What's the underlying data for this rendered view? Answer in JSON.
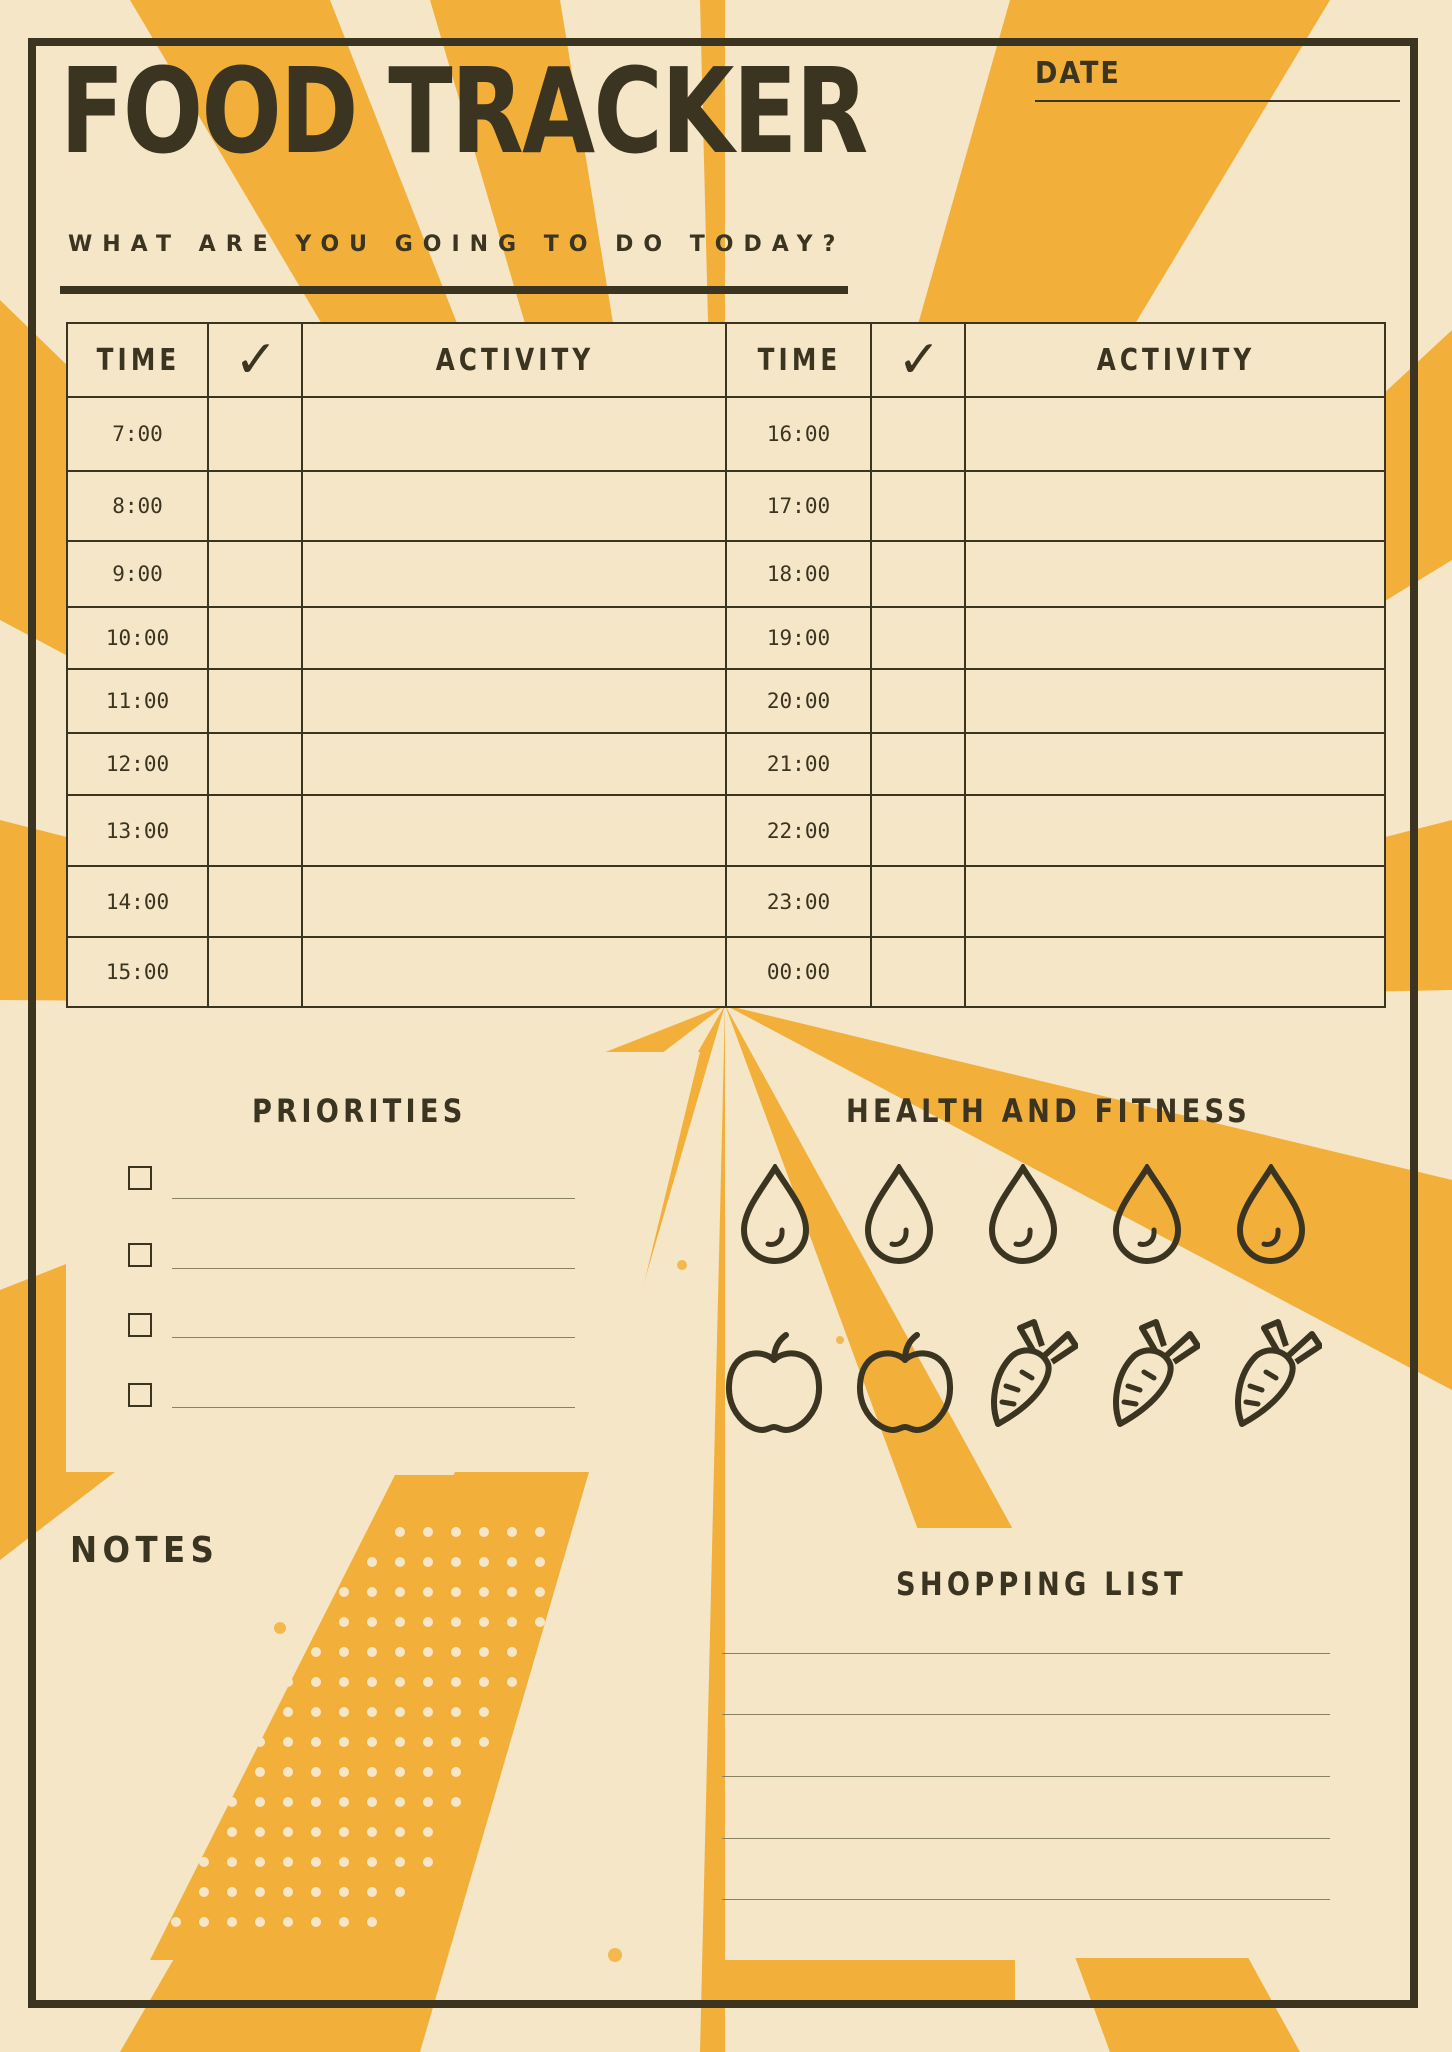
{
  "page": {
    "title": "FOOD TRACKER",
    "subtitle": "WHAT ARE YOU GOING TO DO TODAY?",
    "date_label": "DATE"
  },
  "colors": {
    "background": "#f5e6c8",
    "accent": "#f2b03a",
    "ink": "#3a3420"
  },
  "schedule": {
    "headers": {
      "time": "TIME",
      "check_icon": "check-mark-icon",
      "activity": "ACTIVITY"
    },
    "left_times": [
      "7:00",
      "8:00",
      "9:00",
      "10:00",
      "11:00",
      "12:00",
      "13:00",
      "14:00",
      "15:00"
    ],
    "right_times": [
      "16:00",
      "17:00",
      "18:00",
      "19:00",
      "20:00",
      "21:00",
      "22:00",
      "23:00",
      "00:00"
    ]
  },
  "priorities": {
    "title": "PRIORITIES",
    "item_count": 4
  },
  "health_fitness": {
    "title": "HEALTH AND FITNESS",
    "water_icons": [
      "water-drop-icon",
      "water-drop-icon",
      "water-drop-icon",
      "water-drop-icon",
      "water-drop-icon"
    ],
    "food_icons": [
      "apple-icon",
      "apple-icon",
      "carrot-icon",
      "carrot-icon",
      "carrot-icon"
    ]
  },
  "notes": {
    "title": "NOTES"
  },
  "shopping_list": {
    "title": "SHOPPING LIST",
    "line_count": 5
  }
}
